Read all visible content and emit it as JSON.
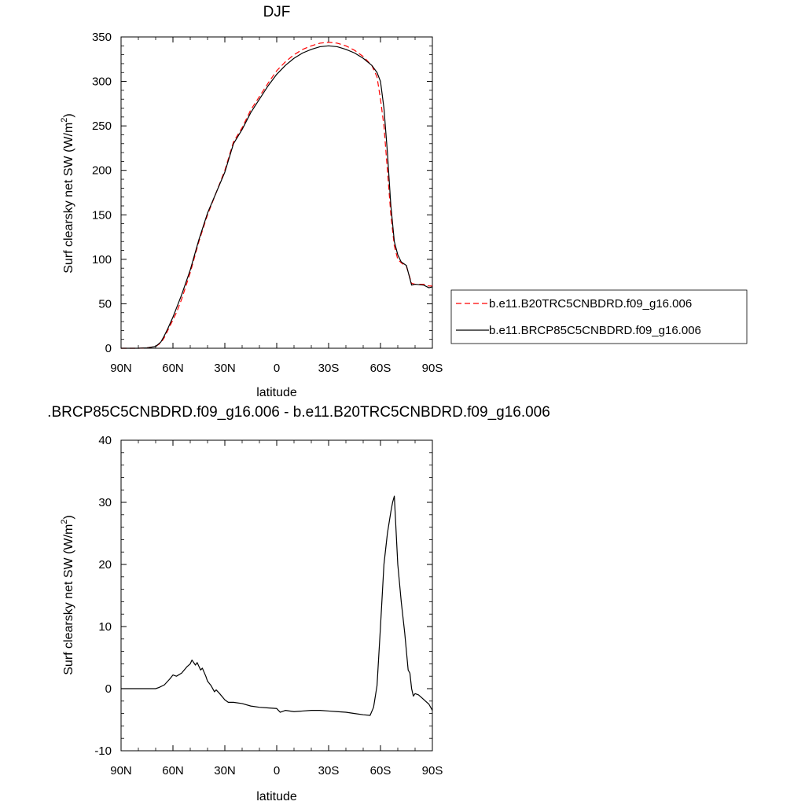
{
  "chart_data": [
    {
      "type": "line",
      "title": "DJF",
      "xlabel": "latitude",
      "ylabel": "Surf clearsky net SW (W/m",
      "ylabel_sup": "2",
      "ylabel_end": ")",
      "xlim": [
        90,
        -90
      ],
      "ylim": [
        0,
        350
      ],
      "xticks": [
        {
          "v": 90,
          "label": "90N"
        },
        {
          "v": 60,
          "label": "60N"
        },
        {
          "v": 30,
          "label": "30N"
        },
        {
          "v": 0,
          "label": "0"
        },
        {
          "v": -30,
          "label": "30S"
        },
        {
          "v": -60,
          "label": "60S"
        },
        {
          "v": -90,
          "label": "90S"
        }
      ],
      "yticks": [
        0,
        50,
        100,
        150,
        200,
        250,
        300,
        350
      ],
      "legend": "right",
      "series": [
        {
          "name": "b.e11.B20TRC5CNBDRD.f09_g16.006",
          "color": "#ff0000",
          "dash": true,
          "x": [
            90,
            80,
            75,
            70,
            67,
            65,
            63,
            60,
            58,
            55,
            50,
            45,
            40,
            35,
            30,
            25,
            20,
            15,
            10,
            5,
            0,
            -5,
            -10,
            -15,
            -20,
            -25,
            -30,
            -35,
            -40,
            -45,
            -50,
            -55,
            -58,
            -60,
            -62,
            -64,
            -66,
            -68,
            -70,
            -72,
            -75,
            -78,
            -80,
            -85,
            -88,
            -90
          ],
          "y": [
            0,
            0,
            0.5,
            2,
            6,
            12,
            20,
            32,
            40,
            55,
            85,
            120,
            150,
            175,
            200,
            232,
            248,
            268,
            283,
            298,
            312,
            322,
            330,
            336,
            340,
            343,
            344,
            343,
            340,
            335,
            328,
            318,
            305,
            280,
            250,
            200,
            150,
            115,
            100,
            96,
            92,
            73,
            72,
            72,
            70,
            70
          ]
        },
        {
          "name": "b.e11.BRCP85C5CNBDRD.f09_g16.006",
          "color": "#000000",
          "dash": false,
          "x": [
            90,
            80,
            75,
            70,
            67,
            65,
            63,
            60,
            58,
            55,
            50,
            45,
            40,
            35,
            30,
            25,
            20,
            15,
            10,
            5,
            0,
            -5,
            -10,
            -15,
            -20,
            -25,
            -30,
            -35,
            -40,
            -45,
            -50,
            -55,
            -58,
            -60,
            -62,
            -64,
            -66,
            -68,
            -70,
            -72,
            -75,
            -78,
            -80,
            -85,
            -88,
            -90
          ],
          "y": [
            0,
            0,
            0.5,
            2,
            7,
            14,
            22,
            35,
            45,
            60,
            88,
            122,
            152,
            175,
            198,
            230,
            246,
            265,
            280,
            295,
            308,
            318,
            326,
            332,
            336,
            339,
            340,
            339,
            336,
            332,
            326,
            318,
            310,
            300,
            270,
            220,
            160,
            120,
            105,
            97,
            93,
            71,
            72,
            71,
            68,
            69
          ]
        }
      ]
    },
    {
      "type": "line",
      "title": ".BRCP85C5CNBDRD.f09_g16.006 - b.e11.B20TRC5CNBDRD.f09_g16.006",
      "xlabel": "latitude",
      "ylabel": "Surf clearsky net SW (W/m",
      "ylabel_sup": "2",
      "ylabel_end": ")",
      "xlim": [
        90,
        -90
      ],
      "ylim": [
        -10,
        40
      ],
      "xticks": [
        {
          "v": 90,
          "label": "90N"
        },
        {
          "v": 60,
          "label": "60N"
        },
        {
          "v": 30,
          "label": "30N"
        },
        {
          "v": 0,
          "label": "0"
        },
        {
          "v": -30,
          "label": "30S"
        },
        {
          "v": -60,
          "label": "60S"
        },
        {
          "v": -90,
          "label": "90S"
        }
      ],
      "yticks": [
        -10,
        0,
        10,
        20,
        30,
        40
      ],
      "series": [
        {
          "color": "#000000",
          "dash": false,
          "x": [
            90,
            80,
            75,
            70,
            68,
            65,
            62,
            60,
            58,
            55,
            52,
            50,
            49,
            47,
            46,
            44,
            43,
            41,
            40,
            38,
            36,
            35,
            33,
            30,
            28,
            25,
            20,
            15,
            10,
            5,
            0,
            -2,
            -5,
            -10,
            -15,
            -20,
            -25,
            -30,
            -35,
            -40,
            -45,
            -50,
            -54,
            -56,
            -58,
            -60,
            -62,
            -64,
            -66,
            -67,
            -68,
            -70,
            -72,
            -74,
            -76,
            -77,
            -78,
            -79,
            -80,
            -82,
            -84,
            -86,
            -88,
            -90
          ],
          "y": [
            0,
            0,
            0,
            0,
            0.2,
            0.6,
            1.5,
            2.2,
            2.0,
            2.5,
            3.5,
            4.0,
            4.6,
            3.8,
            4.2,
            3.0,
            3.3,
            2.0,
            1.2,
            0.5,
            -0.5,
            -0.2,
            -0.8,
            -1.8,
            -2.2,
            -2.2,
            -2.4,
            -2.8,
            -3.0,
            -3.1,
            -3.2,
            -3.8,
            -3.5,
            -3.7,
            -3.6,
            -3.5,
            -3.5,
            -3.6,
            -3.7,
            -3.8,
            -4.0,
            -4.2,
            -4.3,
            -3.0,
            0.5,
            10.0,
            20.0,
            25.0,
            28.5,
            30.0,
            31.0,
            20.0,
            14.0,
            9.0,
            3.0,
            2.5,
            0.0,
            -1.2,
            -0.8,
            -1.0,
            -1.5,
            -2.0,
            -2.5,
            -3.5
          ]
        }
      ]
    }
  ]
}
